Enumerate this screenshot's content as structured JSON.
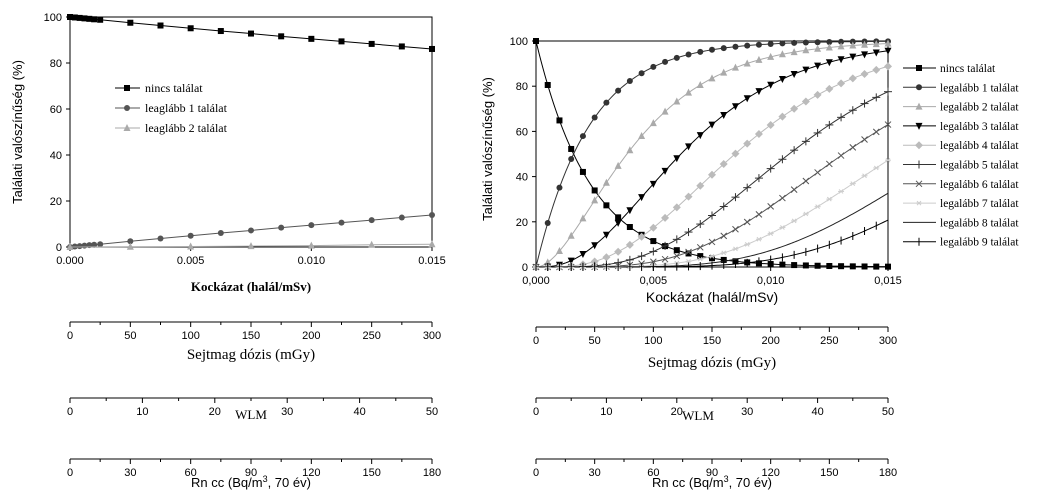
{
  "chart_data": [
    {
      "type": "line",
      "xlabel": "Kockázat (halál/mSv)",
      "ylabel": "Találati valószínűség  (%)",
      "xlim": [
        0,
        0.015
      ],
      "ylim": [
        0,
        100
      ],
      "x_ticks": [
        "0.000",
        "0.005",
        "0.010",
        "0.015"
      ],
      "y_ticks": [
        "0",
        "20",
        "40",
        "60",
        "80",
        "100"
      ],
      "legend_position": "center-left",
      "grid": false,
      "series": [
        {
          "name": "nincs találat",
          "marker": "square",
          "color": "#000000",
          "x": [
            0,
            0.0002,
            0.0004,
            0.0006,
            0.0008,
            0.001,
            0.00125,
            0.0025,
            0.00375,
            0.005,
            0.00625,
            0.0075,
            0.00875,
            0.01,
            0.01125,
            0.0125,
            0.01375,
            0.015
          ],
          "y": [
            100,
            99.8,
            99.6,
            99.4,
            99.2,
            99.0,
            98.8,
            97.5,
            96.3,
            95.1,
            93.9,
            92.8,
            91.6,
            90.5,
            89.4,
            88.3,
            87.2,
            86.1
          ]
        },
        {
          "name": "leaglább 1 találat",
          "marker": "circle",
          "color": "#555555",
          "x": [
            0,
            0.0002,
            0.0004,
            0.0006,
            0.0008,
            0.001,
            0.00125,
            0.0025,
            0.00375,
            0.005,
            0.00625,
            0.0075,
            0.00875,
            0.01,
            0.01125,
            0.0125,
            0.01375,
            0.015
          ],
          "y": [
            0,
            0.2,
            0.4,
            0.6,
            0.8,
            1.0,
            1.2,
            2.5,
            3.7,
            4.9,
            6.1,
            7.2,
            8.4,
            9.5,
            10.6,
            11.7,
            12.8,
            13.9
          ]
        },
        {
          "name": "leaglább 2 találat",
          "marker": "triangle",
          "color": "#aaaaaa",
          "x": [
            0,
            0.0025,
            0.005,
            0.0075,
            0.01,
            0.0125,
            0.015
          ],
          "y": [
            0,
            0.1,
            0.2,
            0.4,
            0.6,
            1.0,
            1.2
          ]
        }
      ]
    },
    {
      "type": "line",
      "xlabel": "Kockázat (halál/mSv)",
      "ylabel": "Találati valószínűség  (%)",
      "xlim": [
        0,
        0.015
      ],
      "ylim": [
        0,
        100
      ],
      "x_ticks": [
        "0,000",
        "0,005",
        "0,010",
        "0,015"
      ],
      "y_ticks": [
        "0",
        "20",
        "40",
        "60",
        "80",
        "100"
      ],
      "legend_position": "outside-right",
      "grid": false,
      "model": "poisson_cumulative",
      "mean_hits_per_risk": 433,
      "x_points": [
        0,
        0.0005,
        0.001,
        0.0015,
        0.002,
        0.0025,
        0.003,
        0.0035,
        0.004,
        0.0045,
        0.005,
        0.0055,
        0.006,
        0.0065,
        0.007,
        0.0075,
        0.008,
        0.0085,
        0.009,
        0.0095,
        0.01,
        0.0105,
        0.011,
        0.0115,
        0.012,
        0.0125,
        0.013,
        0.0135,
        0.014,
        0.0145,
        0.015
      ],
      "series": [
        {
          "name": "nincs találat",
          "marker": "square",
          "color": "#000000",
          "min_hits": 0
        },
        {
          "name": "legalább 1 találat",
          "marker": "circle",
          "color": "#333333",
          "min_hits": 1
        },
        {
          "name": "legalább 2 találat",
          "marker": "triangle",
          "color": "#aaaaaa",
          "min_hits": 2
        },
        {
          "name": "legalább 3 találat",
          "marker": "triangle-down",
          "color": "#000000",
          "min_hits": 3
        },
        {
          "name": "legalább 4 találat",
          "marker": "diamond",
          "color": "#bbbbbb",
          "min_hits": 4
        },
        {
          "name": "legalább 5 találat",
          "marker": "plus",
          "color": "#333333",
          "min_hits": 5
        },
        {
          "name": "legalább 6 találat",
          "marker": "x",
          "color": "#555555",
          "min_hits": 6
        },
        {
          "name": "legalább 7 találat",
          "marker": "star",
          "color": "#cccccc",
          "min_hits": 7
        },
        {
          "name": "legalább 8 találat",
          "marker": "none",
          "color": "#222222",
          "min_hits": 8
        },
        {
          "name": "legalább 9 találat",
          "marker": "bar",
          "color": "#000000",
          "min_hits": 9
        }
      ]
    }
  ],
  "secondary_axes": {
    "dose": {
      "label": "Sejtmag dózis (mGy)",
      "ticks": [
        "0",
        "50",
        "100",
        "150",
        "200",
        "250",
        "300"
      ]
    },
    "wlm": {
      "label": "WLM",
      "ticks": [
        "0",
        "10",
        "20",
        "30",
        "40",
        "50"
      ]
    },
    "rn": {
      "label_main": "Rn cc (Bq/m",
      "label_sup": "3",
      "label_tail": ", 70 év)",
      "ticks": [
        "0",
        "30",
        "60",
        "90",
        "120",
        "150",
        "180"
      ]
    }
  }
}
